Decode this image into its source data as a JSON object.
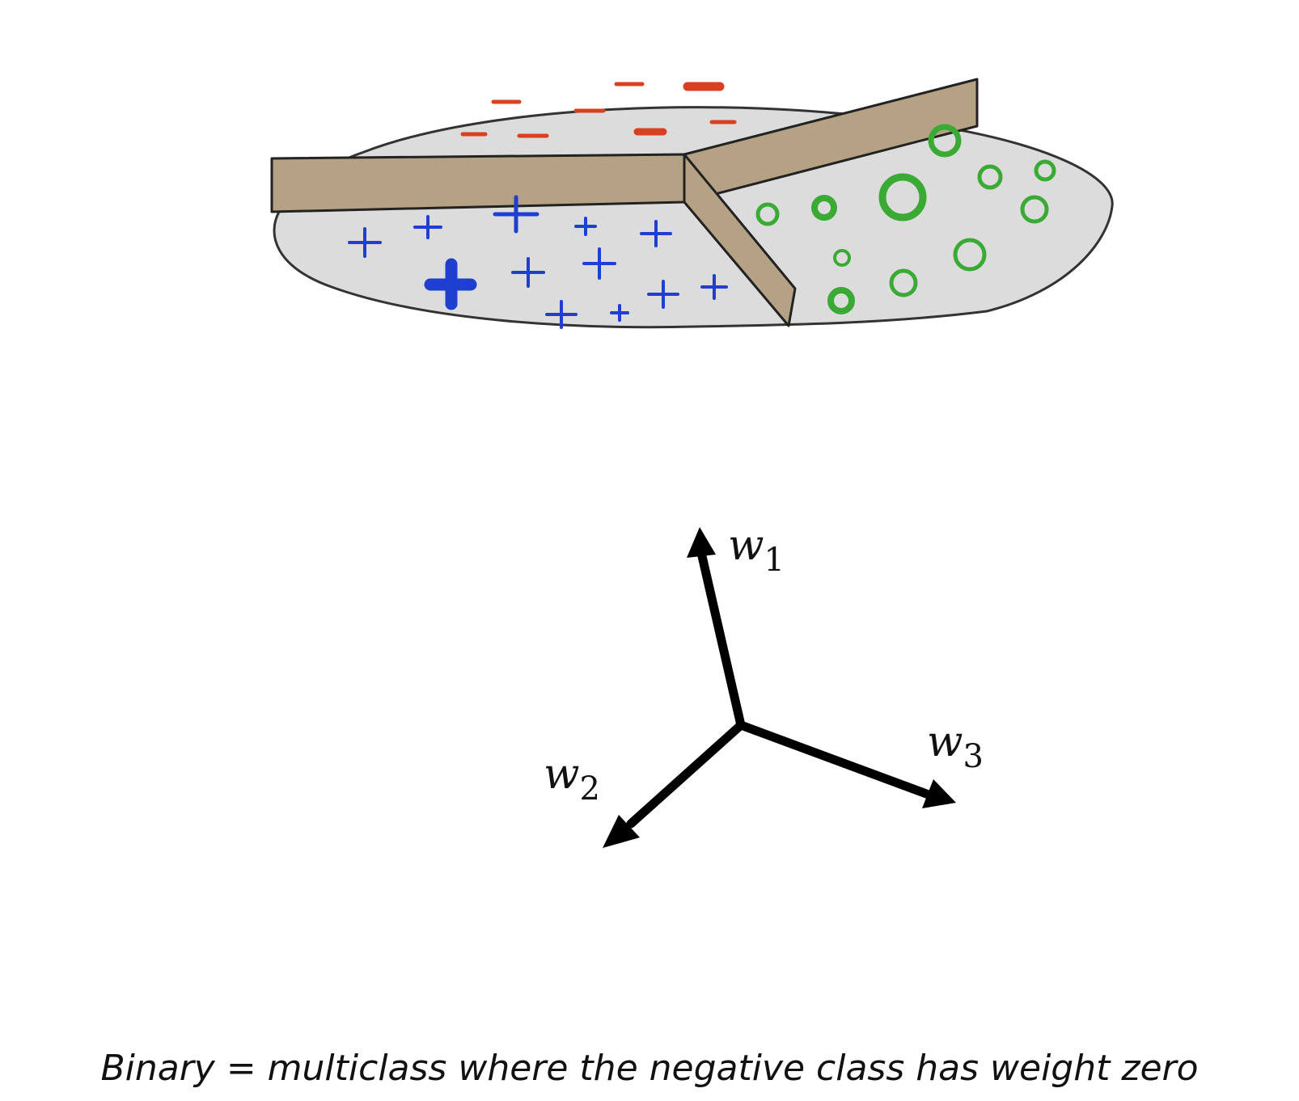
{
  "illustration": {
    "regions": [
      {
        "class": "negative",
        "symbol": "minus",
        "color": "#d9401f"
      },
      {
        "class": "positive",
        "symbol": "plus",
        "color": "#1f3fd1"
      },
      {
        "class": "circle",
        "symbol": "circle",
        "color": "#3aaa35"
      }
    ],
    "disc_color": "#dcdcdc",
    "wall_color": "#b5a284"
  },
  "vectors": [
    {
      "name": "w",
      "subscript": "1"
    },
    {
      "name": "w",
      "subscript": "2"
    },
    {
      "name": "w",
      "subscript": "3"
    }
  ],
  "caption": "Binary = multiclass where the negative class has weight zero"
}
